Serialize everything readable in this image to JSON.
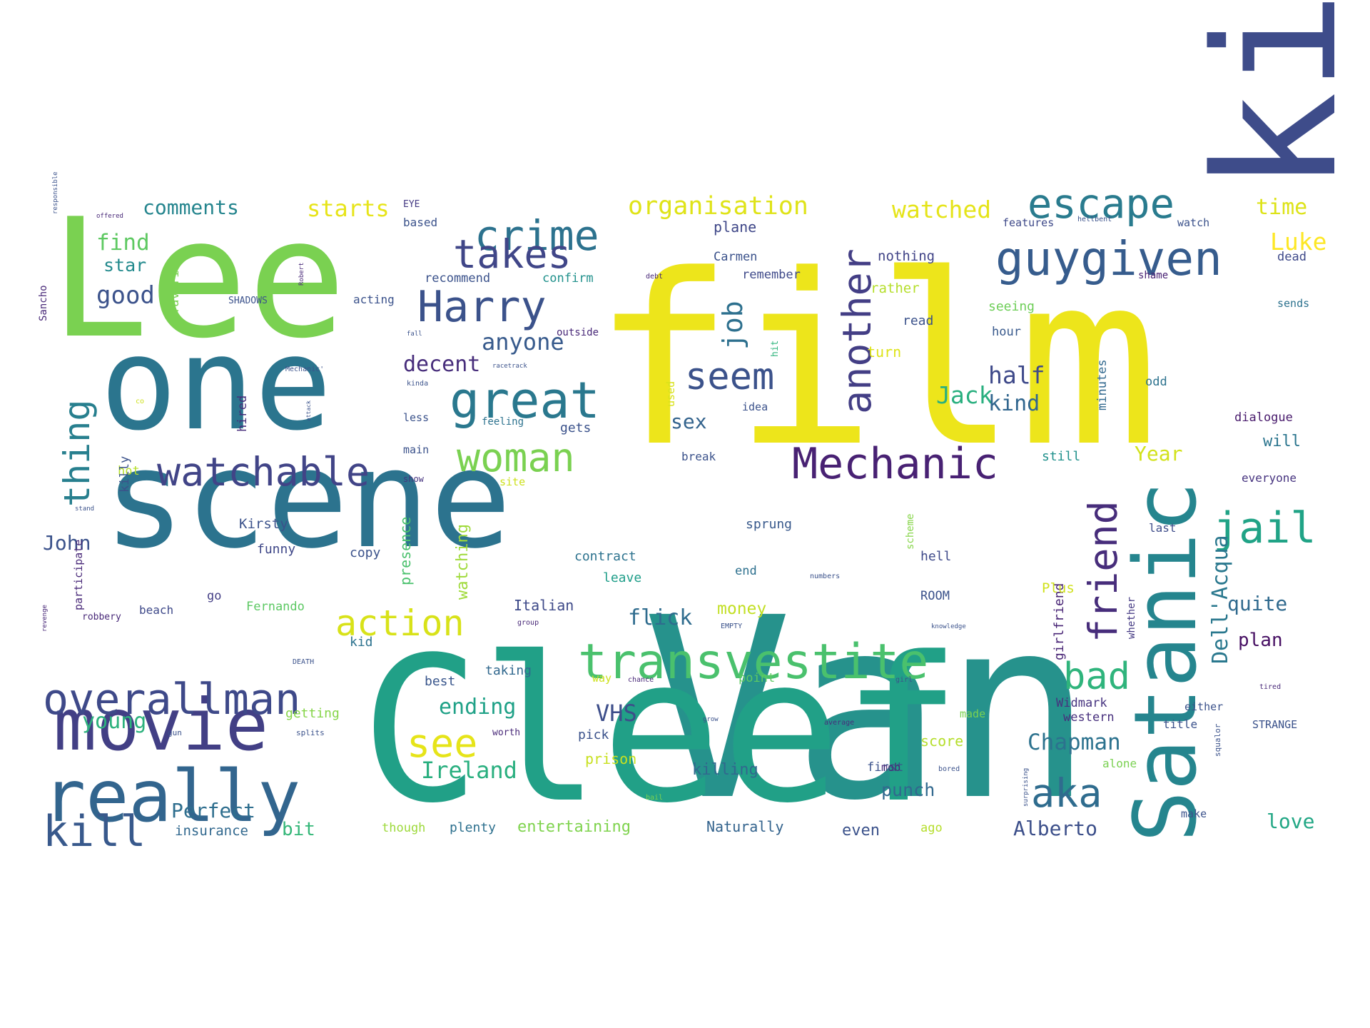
{
  "word_cloud": {
    "words": [
      {
        "text": "film",
        "color": "#ede51b"
      },
      {
        "text": "Van",
        "color": "#26928c"
      },
      {
        "text": "Cleef",
        "color": "#21a087"
      },
      {
        "text": "scene",
        "color": "#2c738e"
      },
      {
        "text": "Lee",
        "color": "#7ad151"
      },
      {
        "text": "one",
        "color": "#2b758e"
      },
      {
        "text": "killer",
        "color": "#3e4c8a"
      },
      {
        "text": "Satanic",
        "color": "#25858e"
      },
      {
        "text": "movie",
        "color": "#423f85"
      },
      {
        "text": "really",
        "color": "#32658e"
      },
      {
        "text": "transvestite",
        "color": "#4ac16d"
      },
      {
        "text": "Mechanic",
        "color": "#482173"
      },
      {
        "text": "great",
        "color": "#2a788e"
      },
      {
        "text": "crime",
        "color": "#2c728e"
      },
      {
        "text": "escape",
        "color": "#297b8e"
      },
      {
        "text": "guygiven",
        "color": "#365c8d"
      },
      {
        "text": "Harry",
        "color": "#3b528b"
      },
      {
        "text": "takes",
        "color": "#404688"
      },
      {
        "text": "overallman",
        "color": "#3e4989"
      },
      {
        "text": "watchable",
        "color": "#414487"
      },
      {
        "text": "woman",
        "color": "#7ad151"
      },
      {
        "text": "see",
        "color": "#e6e419"
      },
      {
        "text": "kill",
        "color": "#38598c"
      },
      {
        "text": "action",
        "color": "#d8e219"
      },
      {
        "text": "seem",
        "color": "#3b528b"
      },
      {
        "text": "another",
        "color": "#433e85"
      },
      {
        "text": "friend",
        "color": "#472d7b"
      },
      {
        "text": "jail",
        "color": "#20a386"
      },
      {
        "text": "aka",
        "color": "#2f6c8e"
      },
      {
        "text": "bad",
        "color": "#2fb47c"
      },
      {
        "text": "thing",
        "color": "#277f8e"
      },
      {
        "text": "job",
        "color": "#2d708e"
      },
      {
        "text": "Jack",
        "color": "#29af7f"
      },
      {
        "text": "Luke",
        "color": "#fde725"
      },
      {
        "text": "Dell'Acqua",
        "color": "#2a788e"
      },
      {
        "text": "organisation",
        "color": "#dfe318"
      },
      {
        "text": "watched",
        "color": "#e5e419"
      },
      {
        "text": "starts",
        "color": "#e7e419"
      },
      {
        "text": "comments",
        "color": "#25858e"
      },
      {
        "text": "time",
        "color": "#dde318"
      },
      {
        "text": "anyone",
        "color": "#375a8c"
      },
      {
        "text": "decent",
        "color": "#472d7b"
      },
      {
        "text": "half",
        "color": "#3e4989"
      },
      {
        "text": "kind",
        "color": "#31668e"
      },
      {
        "text": "good",
        "color": "#3b528b"
      },
      {
        "text": "find",
        "color": "#5ec962"
      },
      {
        "text": "star",
        "color": "#238a8d"
      },
      {
        "text": "ending",
        "color": "#1fa187"
      },
      {
        "text": "young",
        "color": "#2db27d"
      },
      {
        "text": "VHS",
        "color": "#3d4e8a"
      },
      {
        "text": "Chapman",
        "color": "#2c728e"
      },
      {
        "text": "Ireland",
        "color": "#29af7f"
      },
      {
        "text": "Perfect",
        "color": "#2e6e8e"
      },
      {
        "text": "bit",
        "color": "#35b779"
      },
      {
        "text": "Alberto",
        "color": "#3c4f8a"
      },
      {
        "text": "love",
        "color": "#22a785"
      },
      {
        "text": "quite",
        "color": "#306a8e"
      },
      {
        "text": "plan",
        "color": "#471063"
      },
      {
        "text": "flick",
        "color": "#2f6c8e"
      },
      {
        "text": "money",
        "color": "#c2df23"
      },
      {
        "text": "Year",
        "color": "#d2e21b"
      },
      {
        "text": "sex",
        "color": "#33638d"
      },
      {
        "text": "John",
        "color": "#3b528b"
      },
      {
        "text": "insurance",
        "color": "#31688e"
      },
      {
        "text": "entertaining",
        "color": "#7fd34e"
      },
      {
        "text": "killing",
        "color": "#31688e"
      },
      {
        "text": "punch",
        "color": "#31688e"
      },
      {
        "text": "even",
        "color": "#3b528b"
      },
      {
        "text": "girlfriend",
        "color": "#482475"
      },
      {
        "text": "Italian",
        "color": "#3e4a89"
      },
      {
        "text": "Naturally",
        "color": "#33638d"
      },
      {
        "text": "plenty",
        "color": "#2d708e"
      },
      {
        "text": "though",
        "color": "#9dd93b"
      },
      {
        "text": "Widmark",
        "color": "#46337f"
      },
      {
        "text": "western",
        "color": "#472f7d"
      },
      {
        "text": "score",
        "color": "#b5de2b"
      },
      {
        "text": "prison",
        "color": "#c8e020"
      },
      {
        "text": "taking",
        "color": "#31688e"
      },
      {
        "text": "best",
        "color": "#39568c"
      },
      {
        "text": "kid",
        "color": "#2c728e"
      },
      {
        "text": "getting",
        "color": "#86d549"
      },
      {
        "text": "Fernando",
        "color": "#5cc863"
      },
      {
        "text": "go",
        "color": "#433e85"
      },
      {
        "text": "beach",
        "color": "#3e4989"
      },
      {
        "text": "robbery",
        "color": "#482878"
      },
      {
        "text": "watching",
        "color": "#9fda3a"
      },
      {
        "text": "presence",
        "color": "#4ac16d"
      },
      {
        "text": "Kirsty",
        "color": "#3b528b"
      },
      {
        "text": "funny",
        "color": "#3f4788"
      },
      {
        "text": "copy",
        "color": "#3b528b"
      },
      {
        "text": "contract",
        "color": "#2c728e"
      },
      {
        "text": "leave",
        "color": "#1f9e89"
      },
      {
        "text": "end",
        "color": "#2d708e"
      },
      {
        "text": "sprung",
        "color": "#38598c"
      },
      {
        "text": "hell",
        "color": "#3e4989"
      },
      {
        "text": "ROOM",
        "color": "#3b528b"
      },
      {
        "text": "Plus",
        "color": "#d0e11c"
      },
      {
        "text": "whether",
        "color": "#443983"
      },
      {
        "text": "last",
        "color": "#3e4c8a"
      },
      {
        "text": "scheme",
        "color": "#86d549"
      },
      {
        "text": "still",
        "color": "#21918c"
      },
      {
        "text": "will",
        "color": "#2b758e"
      },
      {
        "text": "everyone",
        "color": "#46337f"
      },
      {
        "text": "dialogue",
        "color": "#481a6c"
      },
      {
        "text": "odd",
        "color": "#2c728e"
      },
      {
        "text": "minutes",
        "color": "#31688e"
      },
      {
        "text": "hour",
        "color": "#38598c"
      },
      {
        "text": "read",
        "color": "#3b528b"
      },
      {
        "text": "seeing",
        "color": "#6ece58"
      },
      {
        "text": "turn",
        "color": "#dde318"
      },
      {
        "text": "rather",
        "color": "#b5de2b"
      },
      {
        "text": "nothing",
        "color": "#414487"
      },
      {
        "text": "features",
        "color": "#3e4989"
      },
      {
        "text": "watch",
        "color": "#3b528b"
      },
      {
        "text": "shame",
        "color": "#482173"
      },
      {
        "text": "dead",
        "color": "#3e4989"
      },
      {
        "text": "sends",
        "color": "#2c728e"
      },
      {
        "text": "remember",
        "color": "#3e4989"
      },
      {
        "text": "Carmen",
        "color": "#3b528b"
      },
      {
        "text": "plane",
        "color": "#3f4788"
      },
      {
        "text": "recommend",
        "color": "#3b528b"
      },
      {
        "text": "confirm",
        "color": "#21918c"
      },
      {
        "text": "based",
        "color": "#3b528b"
      },
      {
        "text": "EYE",
        "color": "#443983"
      },
      {
        "text": "acting",
        "color": "#3b528b"
      },
      {
        "text": "SHADOWS",
        "color": "#3b528b"
      },
      {
        "text": "feeling",
        "color": "#2c728e"
      },
      {
        "text": "gets",
        "color": "#3b528b"
      },
      {
        "text": "less",
        "color": "#3b528b"
      },
      {
        "text": "main",
        "color": "#3b528b"
      },
      {
        "text": "show",
        "color": "#46337f"
      },
      {
        "text": "site",
        "color": "#cde11d"
      },
      {
        "text": "break",
        "color": "#3b528b"
      },
      {
        "text": "idea",
        "color": "#3b528b"
      },
      {
        "text": "used",
        "color": "#d8e219"
      },
      {
        "text": "hit",
        "color": "#2fb47c"
      },
      {
        "text": "hired",
        "color": "#472d7b"
      },
      {
        "text": "hot",
        "color": "#b5de2b"
      },
      {
        "text": "favorite",
        "color": "#7ad151"
      },
      {
        "text": "Sancho",
        "color": "#482878"
      },
      {
        "text": "pick",
        "color": "#3b528b"
      },
      {
        "text": "point",
        "color": "#5ec962"
      },
      {
        "text": "way",
        "color": "#cde11d"
      },
      {
        "text": "first",
        "color": "#3b528b"
      },
      {
        "text": "made",
        "color": "#7ad151"
      },
      {
        "text": "ago",
        "color": "#b5de2b"
      },
      {
        "text": "alone",
        "color": "#7ad151"
      },
      {
        "text": "title",
        "color": "#3b528b"
      },
      {
        "text": "either",
        "color": "#3b528b"
      },
      {
        "text": "STRANGE",
        "color": "#3b528b"
      },
      {
        "text": "make",
        "color": "#3b528b"
      },
      {
        "text": "worth",
        "color": "#482878"
      },
      {
        "text": "EMPTY",
        "color": "#3b528b"
      },
      {
        "text": "group",
        "color": "#482878"
      },
      {
        "text": "average",
        "color": "#472d7b"
      },
      {
        "text": "chance",
        "color": "#482878"
      },
      {
        "text": "girl",
        "color": "#3b528b"
      },
      {
        "text": "tired",
        "color": "#482878"
      },
      {
        "text": "mob",
        "color": "#482878"
      },
      {
        "text": "co",
        "color": "#cde11d"
      },
      {
        "text": "kinda",
        "color": "#3b528b"
      },
      {
        "text": "attack",
        "color": "#3b528b"
      },
      {
        "text": "responsible",
        "color": "#3b528b"
      },
      {
        "text": "revenge",
        "color": "#482878"
      },
      {
        "text": "participate",
        "color": "#482878"
      },
      {
        "text": "stand",
        "color": "#3b528b"
      },
      {
        "text": "debt",
        "color": "#482878"
      },
      {
        "text": "offered",
        "color": "#482878"
      },
      {
        "text": "Robert",
        "color": "#482878"
      },
      {
        "text": "surprising",
        "color": "#3b528b"
      },
      {
        "text": "knowledge",
        "color": "#3b528b"
      },
      {
        "text": "outside",
        "color": "#482878"
      },
      {
        "text": "killy",
        "color": "#3b528b"
      },
      {
        "text": "Mechanic'",
        "color": "#3b528b"
      },
      {
        "text": "fall",
        "color": "#3b528b"
      },
      {
        "text": "racetrack",
        "color": "#3b528b"
      },
      {
        "text": "hellbent",
        "color": "#3b528b"
      },
      {
        "text": "bored",
        "color": "#3b528b"
      },
      {
        "text": "splits",
        "color": "#3b528b"
      },
      {
        "text": "squalor",
        "color": "#3b528b"
      },
      {
        "text": "grow",
        "color": "#3b528b"
      },
      {
        "text": "gun",
        "color": "#3b528b"
      },
      {
        "text": "DEATH",
        "color": "#3b528b"
      },
      {
        "text": "numbers",
        "color": "#3b528b"
      },
      {
        "text": "bail",
        "color": "#7ad151"
      },
      {
        "text": "bear",
        "color": "#7ad151"
      }
    ]
  }
}
